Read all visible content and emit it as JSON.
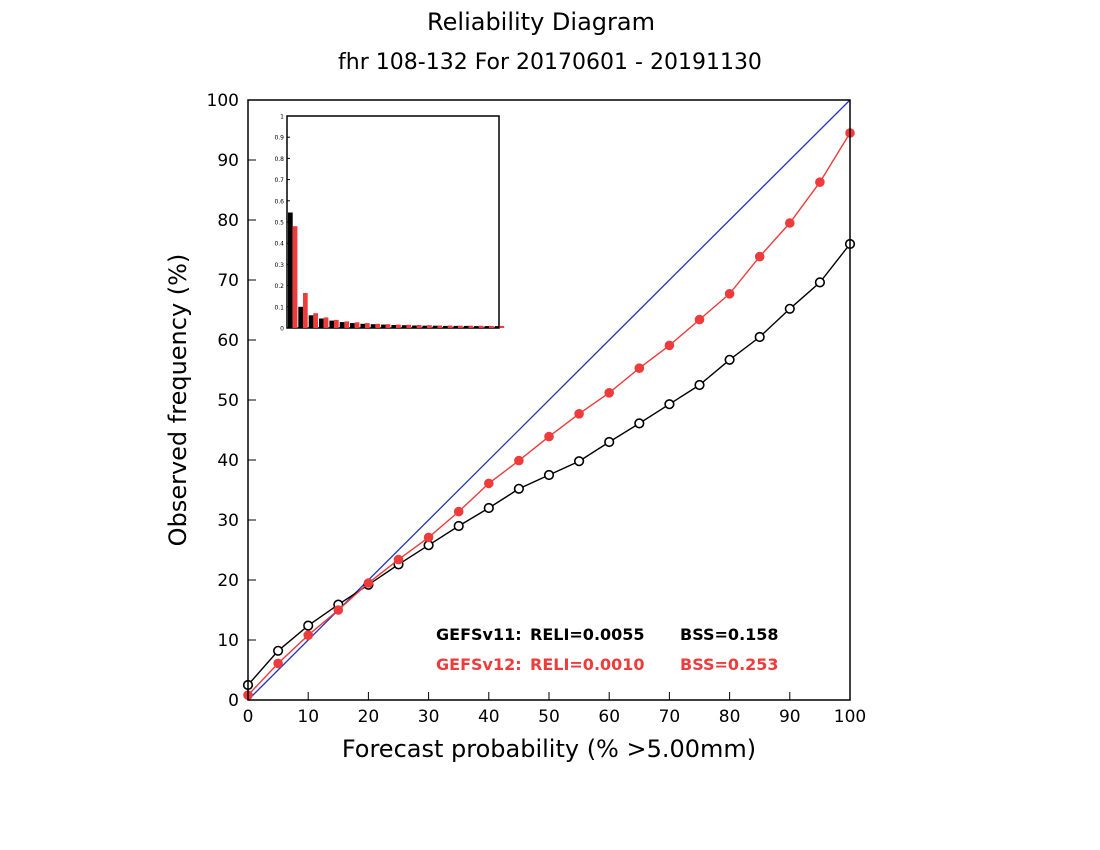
{
  "colors": {
    "gefsv11": "#000000",
    "gefsv12": "#ee3b3b",
    "diagonal": "#2233bb",
    "background": "#ffffff"
  },
  "chart_data": [
    {
      "type": "line",
      "title": "Reliability Diagram",
      "subtitle": "fhr 108-132 For 20170601 - 20191130",
      "xlabel": "Forecast probability (% >5.00mm)",
      "ylabel": "Observed frequency (%)",
      "xlim": [
        0,
        100
      ],
      "ylim": [
        0,
        100
      ],
      "xticks": [
        "0",
        "10",
        "20",
        "30",
        "40",
        "50",
        "60",
        "70",
        "80",
        "90",
        "100"
      ],
      "yticks": [
        "0",
        "10",
        "20",
        "30",
        "40",
        "50",
        "60",
        "70",
        "80",
        "90",
        "100"
      ],
      "grid": false,
      "diagonal": {
        "x": [
          0,
          100
        ],
        "y": [
          0,
          100
        ]
      },
      "series": [
        {
          "name": "GEFSv11",
          "annotation": {
            "label": "GEFSv11:",
            "reli": "RELI=0.0055",
            "bss": "BSS=0.158"
          },
          "marker": "open-circle",
          "x": [
            0,
            5,
            10,
            15,
            20,
            25,
            30,
            35,
            40,
            45,
            50,
            55,
            60,
            65,
            70,
            75,
            80,
            85,
            90,
            95,
            100
          ],
          "y": [
            2.5,
            8.2,
            12.4,
            15.9,
            19.2,
            22.6,
            25.8,
            29.0,
            32.0,
            35.2,
            37.5,
            39.8,
            43.0,
            46.1,
            49.3,
            52.5,
            56.7,
            60.5,
            65.2,
            69.6,
            76.0
          ]
        },
        {
          "name": "GEFSv12",
          "annotation": {
            "label": "GEFSv12:",
            "reli": "RELI=0.0010",
            "bss": "BSS=0.253"
          },
          "marker": "filled-circle",
          "x": [
            0,
            5,
            10,
            15,
            20,
            25,
            30,
            35,
            40,
            45,
            50,
            55,
            60,
            65,
            70,
            75,
            80,
            85,
            90,
            95,
            100
          ],
          "y": [
            0.8,
            6.1,
            10.8,
            15.0,
            19.5,
            23.4,
            27.1,
            31.4,
            36.1,
            39.9,
            43.9,
            47.7,
            51.2,
            55.3,
            59.1,
            63.4,
            67.7,
            73.9,
            79.5,
            86.3,
            94.5
          ]
        }
      ]
    },
    {
      "type": "bar",
      "title": "",
      "inset": true,
      "ylim": [
        0,
        1
      ],
      "yticks": [
        "0",
        "0.1",
        "0.2",
        "0.3",
        "0.4",
        "0.5",
        "0.6",
        "0.7",
        "0.8",
        "0.9",
        "1"
      ],
      "categories": [
        0,
        5,
        10,
        15,
        20,
        25,
        30,
        35,
        40,
        45,
        50,
        55,
        60,
        65,
        70,
        75,
        80,
        85,
        90,
        95,
        100
      ],
      "series": [
        {
          "name": "GEFSv11",
          "values": [
            0.545,
            0.1,
            0.06,
            0.045,
            0.035,
            0.028,
            0.023,
            0.02,
            0.018,
            0.016,
            0.014,
            0.013,
            0.012,
            0.011,
            0.011,
            0.01,
            0.01,
            0.01,
            0.009,
            0.009,
            0.009
          ]
        },
        {
          "name": "GEFSv12",
          "values": [
            0.48,
            0.165,
            0.07,
            0.05,
            0.038,
            0.031,
            0.027,
            0.023,
            0.02,
            0.018,
            0.016,
            0.015,
            0.014,
            0.013,
            0.012,
            0.012,
            0.011,
            0.011,
            0.011,
            0.01,
            0.01
          ]
        }
      ]
    }
  ]
}
